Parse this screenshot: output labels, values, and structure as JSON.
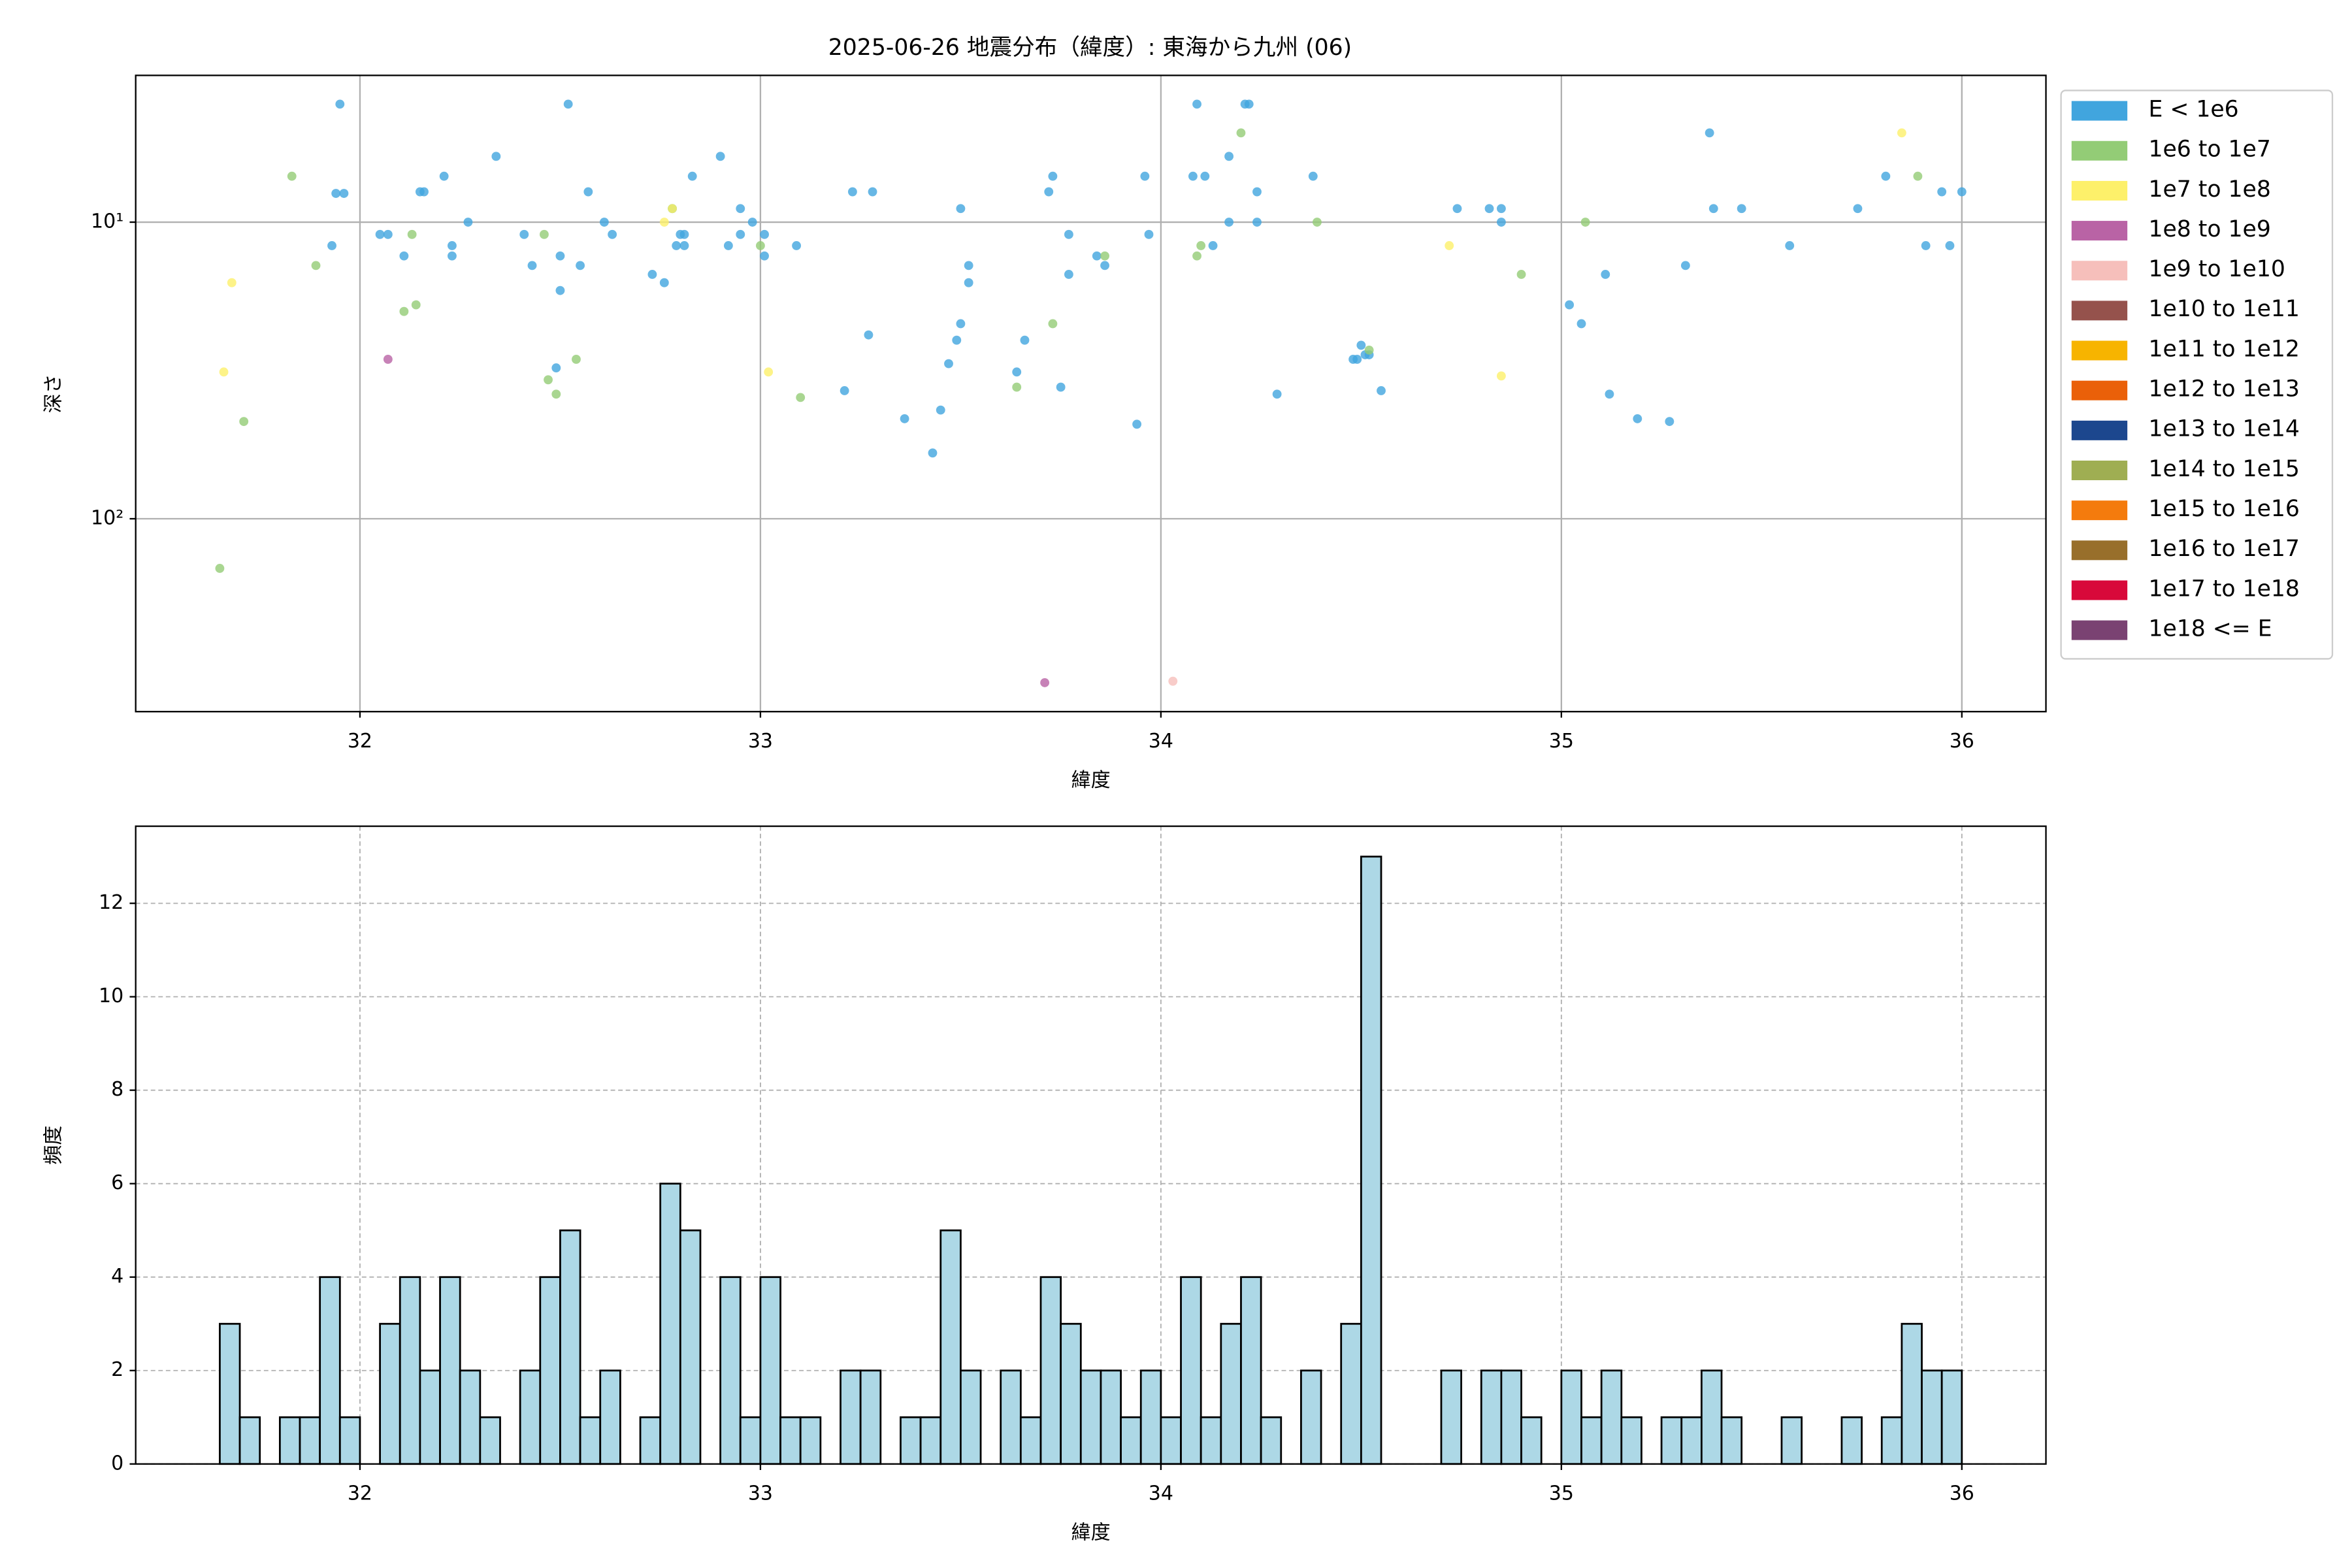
{
  "chart_data": [
    {
      "type": "scatter",
      "title": "2025-06-26 地震分布（緯度）: 東海から九州 (06)",
      "xlabel": "緯度",
      "ylabel": "深さ",
      "xlim": [
        31.44,
        36.21
      ],
      "xticks": [
        32,
        33,
        34,
        35,
        36
      ],
      "ylim": [
        447,
        3.2
      ],
      "yscale": "log",
      "yticks": [
        {
          "value": 10,
          "label": "10¹"
        },
        {
          "value": 100,
          "label": "10²"
        }
      ],
      "grid": true,
      "legend": "right",
      "series": [
        {
          "name": "E < 1e6",
          "color": "#41a5de",
          "x": [
            31.95,
            31.94,
            31.96,
            31.93,
            32.05,
            32.07,
            32.11,
            32.15,
            32.16,
            32.21,
            32.23,
            32.23,
            32.27,
            32.34,
            32.41,
            32.43,
            32.5,
            32.5,
            32.52,
            32.55,
            32.49,
            32.57,
            32.61,
            32.63,
            32.73,
            32.76,
            32.78,
            32.79,
            32.8,
            32.81,
            32.81,
            32.83,
            32.9,
            32.92,
            32.95,
            32.95,
            32.98,
            33.01,
            33.01,
            33.09,
            33.21,
            33.23,
            33.27,
            33.28,
            33.36,
            33.43,
            33.45,
            33.47,
            33.49,
            33.5,
            33.5,
            33.52,
            33.52,
            33.64,
            33.66,
            33.72,
            33.73,
            33.75,
            33.77,
            33.77,
            33.84,
            33.86,
            33.94,
            33.96,
            33.97,
            34.09,
            34.08,
            34.11,
            34.13,
            34.17,
            34.17,
            34.21,
            34.22,
            34.24,
            34.24,
            34.29,
            34.38,
            34.48,
            34.49,
            34.5,
            34.51,
            34.52,
            34.55,
            34.74,
            34.82,
            34.85,
            34.85,
            35.02,
            35.05,
            35.11,
            35.12,
            35.19,
            35.27,
            35.31,
            35.37,
            35.38,
            35.45,
            35.57,
            35.74,
            35.81,
            35.91,
            35.95,
            35.97,
            36.0
          ],
          "values": [
            4.0,
            8.0,
            8.0,
            12,
            11,
            11,
            13,
            7.9,
            7.9,
            7.0,
            13,
            12,
            10,
            6.0,
            11,
            14,
            13,
            17,
            4.0,
            14,
            31,
            7.9,
            10,
            11,
            15,
            16,
            9.0,
            12,
            11,
            11,
            12,
            7.0,
            6.0,
            12,
            9.0,
            11,
            10,
            11,
            13,
            12,
            37,
            7.9,
            24,
            7.9,
            46,
            60,
            43,
            30,
            25,
            22,
            9.0,
            16,
            14,
            32,
            25,
            7.9,
            7.0,
            36,
            11,
            15,
            13,
            14,
            48,
            7.0,
            11,
            4.0,
            7.0,
            7.0,
            12,
            6.0,
            10,
            4.0,
            4.0,
            7.9,
            10,
            38,
            7.0,
            29,
            29,
            26,
            28,
            28,
            37,
            9.0,
            9.0,
            9.0,
            10,
            19,
            22,
            15,
            38,
            46,
            47,
            14,
            5.0,
            9.0,
            9.0,
            12,
            9.0,
            7.0,
            12,
            7.9,
            12,
            7.9
          ]
        },
        {
          "name": "1e6 to 1e7",
          "color": "#93cc76",
          "x": [
            31.83,
            31.89,
            32.13,
            32.11,
            32.14,
            32.46,
            32.47,
            32.49,
            32.54,
            32.78,
            33.0,
            33.1,
            33.64,
            33.73,
            33.86,
            34.09,
            34.1,
            34.2,
            34.39,
            34.52,
            34.9,
            35.06,
            35.89,
            31.71,
            31.65
          ],
          "values": [
            7.0,
            14,
            11,
            20,
            19,
            11,
            34,
            38,
            29,
            9.0,
            12,
            39,
            36,
            22,
            13,
            13,
            12,
            5.0,
            10,
            27,
            15,
            10,
            7.0,
            47,
            147
          ]
        },
        {
          "name": "1e7 to 1e8",
          "color": "#fdf06a",
          "x": [
            31.66,
            31.68,
            32.76,
            32.78,
            33.02,
            34.72,
            34.85,
            35.85
          ],
          "values": [
            32,
            16,
            10,
            9.0,
            32,
            12,
            33,
            5.0
          ]
        },
        {
          "name": "1e8 to 1e9",
          "color": "#b963a5",
          "x": [
            32.07,
            33.71
          ],
          "values": [
            29,
            357
          ]
        },
        {
          "name": "1e9 to 1e10",
          "color": "#f6bfbb",
          "x": [
            34.03
          ],
          "values": [
            353
          ]
        },
        {
          "name": "1e10 to 1e11",
          "color": "#95524c",
          "x": [],
          "values": []
        },
        {
          "name": "1e11 to 1e12",
          "color": "#f7b400",
          "x": [],
          "values": []
        },
        {
          "name": "1e12 to 1e13",
          "color": "#ea6009",
          "x": [],
          "values": []
        },
        {
          "name": "1e13 to 1e14",
          "color": "#1c478e",
          "x": [],
          "values": []
        },
        {
          "name": "1e14 to 1e15",
          "color": "#9fae52",
          "x": [],
          "values": []
        },
        {
          "name": "1e15 to 1e16",
          "color": "#f47b0d",
          "x": [],
          "values": []
        },
        {
          "name": "1e16 to 1e17",
          "color": "#986f2b",
          "x": [],
          "values": []
        },
        {
          "name": "1e17 to 1e18",
          "color": "#d8093a",
          "x": [],
          "values": []
        },
        {
          "name": "1e18 <= E",
          "color": "#7a4272",
          "x": [],
          "values": []
        }
      ]
    },
    {
      "type": "histogram",
      "xlabel": "緯度",
      "ylabel": "頻度",
      "color": "#add8e6",
      "xlim": [
        31.44,
        36.21
      ],
      "xticks": [
        32,
        33,
        34,
        35,
        36
      ],
      "ylim": [
        0,
        13.65
      ],
      "yticks": [
        0,
        2,
        4,
        6,
        8,
        10,
        12
      ],
      "grid": true,
      "bins": [
        31.65,
        31.7,
        31.75,
        31.8,
        31.85,
        31.9,
        31.95,
        32.0,
        32.05,
        32.1,
        32.15,
        32.2,
        32.25,
        32.3,
        32.35,
        32.4,
        32.45,
        32.5,
        32.55,
        32.6,
        32.65,
        32.7,
        32.75,
        32.8,
        32.85,
        32.9,
        32.95,
        33.0,
        33.05,
        33.1,
        33.15,
        33.2,
        33.25,
        33.3,
        33.35,
        33.4,
        33.45,
        33.5,
        33.55,
        33.6,
        33.65,
        33.7,
        33.75,
        33.8,
        33.85,
        33.9,
        33.95,
        34.0,
        34.05,
        34.1,
        34.15,
        34.2,
        34.25,
        34.3,
        34.35,
        34.4,
        34.45,
        34.5,
        34.55,
        34.6,
        34.65,
        34.7,
        34.75,
        34.8,
        34.85,
        34.9,
        34.95,
        35.0,
        35.05,
        35.1,
        35.15,
        35.2,
        35.25,
        35.3,
        35.35,
        35.4,
        35.45,
        35.5,
        35.55,
        35.6,
        35.65,
        35.7,
        35.75,
        35.8,
        35.85,
        35.9,
        35.95,
        36.0
      ],
      "counts": [
        3,
        1,
        0,
        1,
        1,
        4,
        1,
        0,
        3,
        4,
        2,
        4,
        2,
        1,
        0,
        2,
        4,
        5,
        1,
        2,
        0,
        1,
        6,
        5,
        0,
        4,
        1,
        4,
        1,
        1,
        0,
        2,
        2,
        0,
        1,
        1,
        5,
        2,
        0,
        2,
        1,
        4,
        3,
        2,
        2,
        1,
        2,
        1,
        4,
        1,
        3,
        4,
        1,
        0,
        2,
        0,
        3,
        13,
        0,
        0,
        0,
        2,
        0,
        2,
        2,
        1,
        0,
        2,
        1,
        2,
        1,
        0,
        1,
        1,
        2,
        1,
        0,
        0,
        1,
        0,
        0,
        1,
        0,
        1,
        3,
        2,
        2
      ]
    }
  ]
}
